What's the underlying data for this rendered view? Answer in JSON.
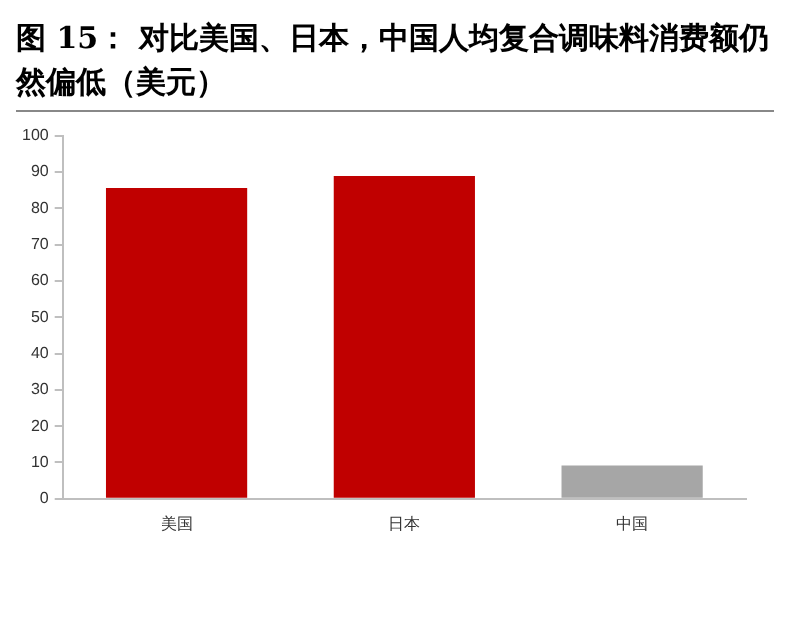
{
  "chart_data": {
    "type": "bar",
    "title": "图 15： 对比美国、日本，中国人均复合调味料消费额仍然偏低（美元）",
    "categories": [
      "美国",
      "日本",
      "中国"
    ],
    "values": [
      85.6,
      88.9,
      9.2
    ],
    "colors": [
      "#c00000",
      "#c00000",
      "#a6a6a6"
    ],
    "ylim": [
      0,
      100
    ],
    "yticks": [
      0,
      10,
      20,
      30,
      40,
      50,
      60,
      70,
      80,
      90,
      100
    ],
    "grid": false,
    "legend": false
  }
}
